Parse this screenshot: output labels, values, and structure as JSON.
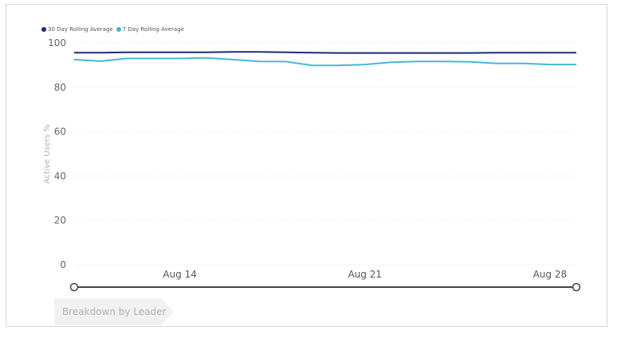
{
  "chart_data": {
    "type": "line",
    "legend_position": "top-left",
    "ylabel": "Active Users %",
    "ylim": [
      0,
      100
    ],
    "yticks": [
      0,
      20,
      40,
      60,
      80,
      100
    ],
    "x_tick_labels": [
      "Aug 14",
      "Aug 21",
      "Aug 28"
    ],
    "x_tick_days": [
      14,
      21,
      28
    ],
    "x": [
      10,
      11,
      12,
      13,
      14,
      15,
      16,
      17,
      18,
      19,
      20,
      21,
      22,
      23,
      24,
      25,
      26,
      27,
      28,
      29
    ],
    "grid": true,
    "series": [
      {
        "name": "30 Day Rolling Average",
        "color": "#1f2a7a",
        "values": [
          95.6,
          95.6,
          95.8,
          95.8,
          95.8,
          95.8,
          96.0,
          96.0,
          95.8,
          95.6,
          95.5,
          95.5,
          95.5,
          95.5,
          95.5,
          95.5,
          95.6,
          95.6,
          95.6,
          95.6
        ]
      },
      {
        "name": "7 Day Rolling Average",
        "color": "#45b7d6",
        "values": [
          92.5,
          91.8,
          93.0,
          93.0,
          93.0,
          93.3,
          92.5,
          91.7,
          91.6,
          89.9,
          89.9,
          90.3,
          91.3,
          91.7,
          91.7,
          91.5,
          90.8,
          90.8,
          90.3,
          90.3
        ]
      }
    ]
  },
  "breadcrumb": {
    "label": "Breakdown by Leader"
  },
  "slider": {
    "range_start_fraction": 0,
    "range_end_fraction": 1
  }
}
